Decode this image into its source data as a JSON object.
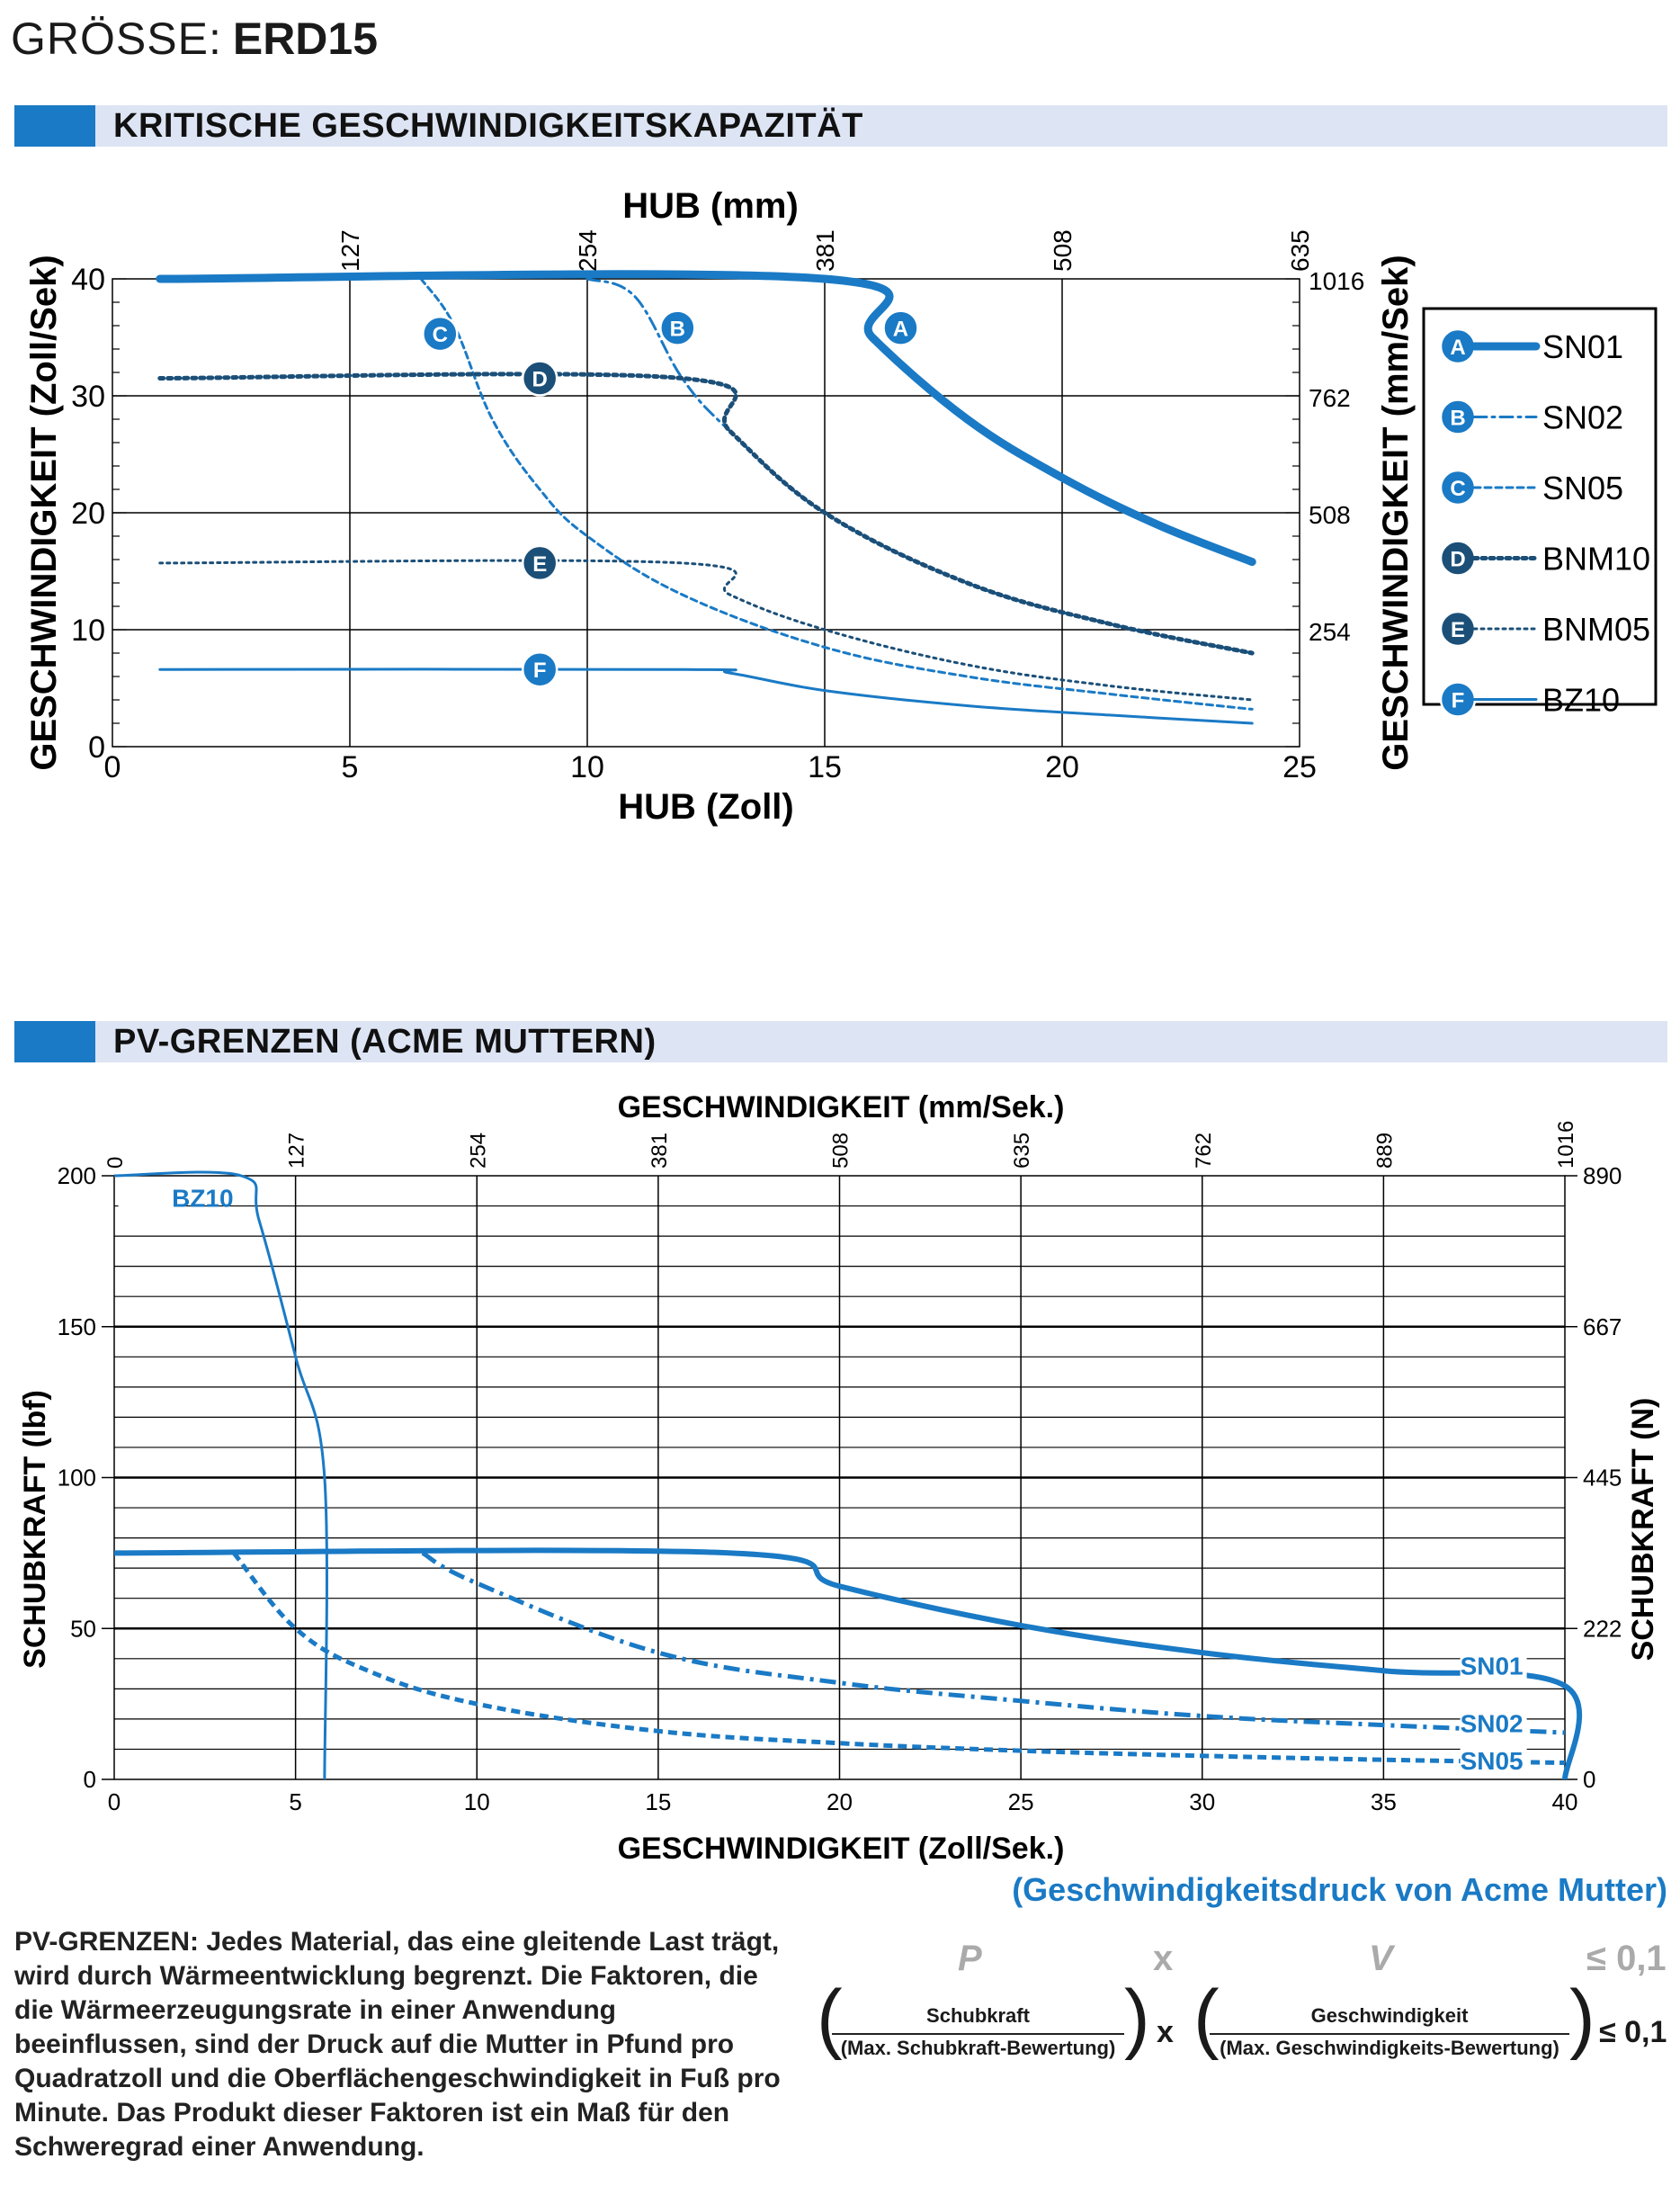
{
  "header": {
    "size_label": "GRÖSSE:",
    "size_value": "ERD15"
  },
  "section1": {
    "title": "KRITISCHE GESCHWINDIGKEITSKAPAZITÄT"
  },
  "section2": {
    "title": "PV-GRENZEN (ACME MUTTERN)"
  },
  "chart_data": [
    {
      "type": "line",
      "title": "",
      "xlabel": "HUB (Zoll)",
      "x2label": "HUB (mm)",
      "ylabel": "GESCHWINDIGKEIT (Zoll/Sek)",
      "y2label": "GESCHWINDIGKEIT (mm/Sek)",
      "xlim": [
        0,
        25
      ],
      "ylim": [
        0,
        40
      ],
      "x_ticks": [
        "0",
        "5",
        "10",
        "15",
        "20",
        "25"
      ],
      "y_ticks": [
        "0",
        "10",
        "20",
        "30",
        "40"
      ],
      "x2_ticks": [
        "127",
        "254",
        "381",
        "508",
        "635"
      ],
      "y2_ticks": [
        "254",
        "508",
        "762",
        "1016"
      ],
      "grid": true,
      "legend_position": "right",
      "series": [
        {
          "name": "SN01",
          "marker": "A",
          "style": "solid-thick",
          "x": [
            1,
            15,
            16,
            18,
            20,
            22,
            24
          ],
          "y": [
            40,
            40,
            35,
            28,
            23,
            19,
            15.8
          ]
        },
        {
          "name": "SN02",
          "marker": "B",
          "style": "dashdot",
          "x": [
            10,
            11,
            12,
            13,
            15,
            18,
            21,
            24
          ],
          "y": [
            40,
            38.5,
            31.5,
            27,
            20,
            14,
            10.5,
            8
          ]
        },
        {
          "name": "SN05",
          "marker": "C",
          "style": "dashed",
          "x": [
            6.5,
            7.2,
            8,
            9,
            10,
            12,
            15,
            18,
            21,
            24
          ],
          "y": [
            40,
            36,
            28,
            22,
            18,
            13,
            8.5,
            6,
            4.5,
            3.2
          ]
        },
        {
          "name": "BNM10",
          "marker": "D",
          "style": "dotted-thick",
          "x": [
            1,
            12,
            13,
            15,
            18,
            21,
            24
          ],
          "y": [
            31.5,
            31.5,
            27,
            20,
            14,
            10.5,
            8
          ]
        },
        {
          "name": "BNM05",
          "marker": "E",
          "style": "dotted",
          "x": [
            1,
            12,
            13,
            15,
            18,
            21,
            24
          ],
          "y": [
            15.7,
            15.7,
            13,
            10,
            7,
            5.2,
            4
          ]
        },
        {
          "name": "BZ10",
          "marker": "F",
          "style": "solid",
          "x": [
            1,
            12,
            13,
            15,
            18,
            21,
            24
          ],
          "y": [
            6.6,
            6.6,
            6.3,
            4.8,
            3.5,
            2.7,
            2
          ]
        }
      ],
      "marker_labels": [
        {
          "marker": "A",
          "x": 16.6,
          "y": 35.8
        },
        {
          "marker": "B",
          "x": 11.9,
          "y": 35.8
        },
        {
          "marker": "C",
          "x": 6.9,
          "y": 35.3
        },
        {
          "marker": "D",
          "x": 9.0,
          "y": 31.5
        },
        {
          "marker": "E",
          "x": 9.0,
          "y": 15.7
        },
        {
          "marker": "F",
          "x": 9.0,
          "y": 6.6
        }
      ]
    },
    {
      "type": "line",
      "title": "",
      "xlabel": "GESCHWINDIGKEIT (Zoll/Sek.)",
      "x2label": "GESCHWINDIGKEIT (mm/Sek.)",
      "ylabel": "SCHUBKRAFT (lbf)",
      "y2label": "SCHUBKRAFT (N)",
      "xlim": [
        0,
        40
      ],
      "ylim": [
        0,
        200
      ],
      "x_ticks": [
        "0",
        "5",
        "10",
        "15",
        "20",
        "25",
        "30",
        "35",
        "40"
      ],
      "y_ticks": [
        "0",
        "50",
        "100",
        "150",
        "200"
      ],
      "x2_ticks": [
        "0",
        "127",
        "254",
        "381",
        "508",
        "635",
        "762",
        "889",
        "1016"
      ],
      "y2_ticks": [
        "0",
        "222",
        "445",
        "667",
        "890"
      ],
      "grid": true,
      "series": [
        {
          "name": "BZ10",
          "style": "solid",
          "x": [
            0,
            3.5,
            4,
            5,
            5.8,
            5.8
          ],
          "y": [
            200,
            200,
            185,
            140,
            100,
            0
          ]
        },
        {
          "name": "SN01",
          "style": "solid-thick",
          "x": [
            0,
            17,
            20,
            25,
            30,
            35,
            40,
            40
          ],
          "y": [
            75,
            75,
            64,
            51,
            42,
            36,
            31,
            0
          ]
        },
        {
          "name": "SN02",
          "style": "dashdot",
          "x": [
            8.5,
            10,
            15,
            20,
            25,
            30,
            35,
            40
          ],
          "y": [
            75,
            65,
            42,
            32,
            26,
            21,
            18,
            15.5
          ]
        },
        {
          "name": "SN05",
          "style": "dashed",
          "x": [
            3.3,
            5,
            7,
            10,
            15,
            20,
            25,
            30,
            35,
            40
          ],
          "y": [
            75,
            50,
            36,
            25,
            16,
            12,
            9.5,
            7.8,
            6.5,
            5.5
          ]
        }
      ],
      "series_labels": [
        {
          "name": "BZ10",
          "x": 1.8,
          "y": 193
        },
        {
          "name": "SN01",
          "x": 38.8,
          "y": 38
        },
        {
          "name": "SN02",
          "x": 38.8,
          "y": 19
        },
        {
          "name": "SN05",
          "x": 38.8,
          "y": 6.5
        }
      ]
    }
  ],
  "pv_caption": "(Geschwindigkeitsdruck von Acme Mutter)",
  "note": "PV-GRENZEN: Jedes Material, das eine gleitende Last trägt, wird durch Wärmeentwicklung begrenzt. Die Faktoren, die die Wärmeerzeugungsrate in einer Anwendung beeinflussen, sind der Druck auf die Mutter in Pfund pro Quadratzoll und die Oberflächengeschwindigkeit in Fuß pro Minute. Das Produkt dieser Faktoren ist ein Maß für den Schweregrad einer Anwendung.",
  "formula": {
    "p": "P",
    "x1": "x",
    "v": "V",
    "leq1": "≤ 0,1",
    "open1": "(",
    "close1": ")",
    "open2": "(",
    "close2": ")",
    "num1": "Schubkraft",
    "den1": "(Max. Schubkraft-Bewertung)",
    "x2": "x",
    "num2": "Geschwindigkeit",
    "den2": "(Max. Geschwindigkeits-Bewertung)",
    "leq2": "≤ 0,1"
  },
  "colors": {
    "accent": "#1a7ac5",
    "dark": "#1b4f78",
    "grid": "#000000",
    "band": "#dde4f3"
  }
}
